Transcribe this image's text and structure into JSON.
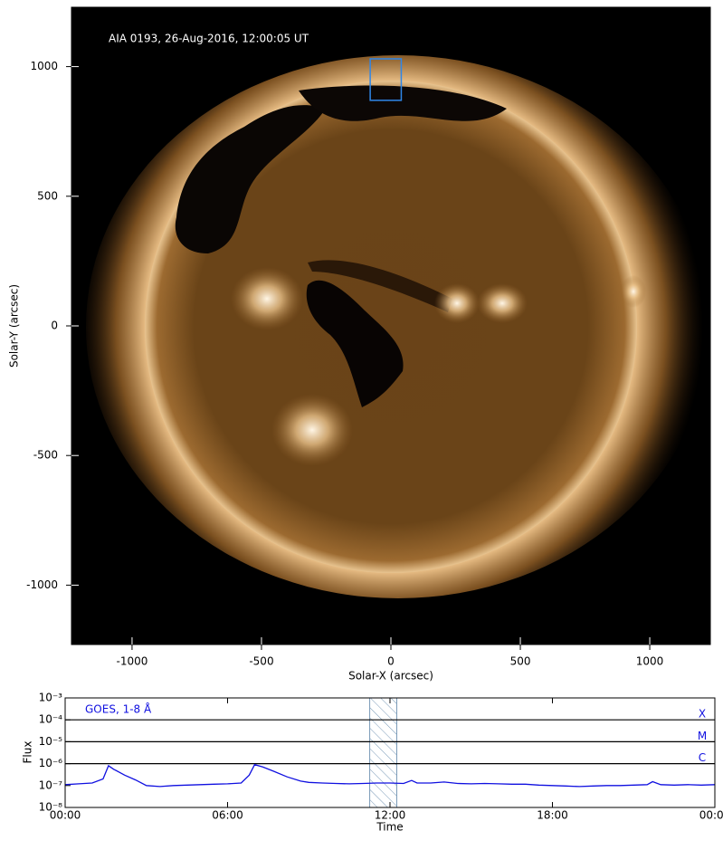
{
  "chart_data": [
    {
      "type": "image",
      "title": "AIA 0193, 26-Aug-2016, 12:00:05 UT",
      "x_label": "Solar-X (arcsec)",
      "y_label": "Solar-Y (arcsec)",
      "xlim": [
        -1234,
        1234
      ],
      "ylim": [
        -1229,
        1229
      ],
      "xticks": [
        -1000,
        -500,
        0,
        500,
        1000
      ],
      "yticks": [
        -1000,
        -500,
        0,
        500,
        1000
      ],
      "box": {
        "x": [
          -80,
          40
        ],
        "y": [
          870,
          1030
        ]
      },
      "box_color": "#2f86e8"
    },
    {
      "type": "line",
      "x_label": "Time",
      "y_label": "Flux",
      "yscale": "log",
      "xlim": [
        0,
        24
      ],
      "ylim": [
        1e-08,
        0.001
      ],
      "xticks": [
        {
          "value": 0,
          "label": "00:00"
        },
        {
          "value": 6,
          "label": "06:00"
        },
        {
          "value": 12,
          "label": "12:00"
        },
        {
          "value": 18,
          "label": "18:00"
        },
        {
          "value": 24,
          "label": "00:00"
        }
      ],
      "yticks": [
        {
          "value": 1e-08,
          "label": "10⁻⁸"
        },
        {
          "value": 1e-07,
          "label": "10⁻⁷"
        },
        {
          "value": 1e-06,
          "label": "10⁻⁶"
        },
        {
          "value": 1e-05,
          "label": "10⁻⁵"
        },
        {
          "value": 0.0001,
          "label": "10⁻⁴"
        },
        {
          "value": 0.001,
          "label": "10⁻³"
        }
      ],
      "thresholds": [
        {
          "value": 0.0001,
          "label": "X"
        },
        {
          "value": 1e-05,
          "label": "M"
        },
        {
          "value": 1e-06,
          "label": "C"
        }
      ],
      "highlight": [
        11.25,
        12.25
      ],
      "x": [
        0,
        0.5,
        1,
        1.4,
        1.6,
        1.8,
        2.2,
        2.6,
        3,
        3.5,
        4,
        4.5,
        5,
        5.5,
        6,
        6.5,
        6.8,
        7,
        7.3,
        7.7,
        8.2,
        8.7,
        9,
        9.5,
        10,
        10.5,
        11,
        11.5,
        12,
        12.5,
        12.8,
        13,
        13.5,
        14,
        14.5,
        15,
        15.5,
        16,
        16.5,
        17,
        17.5,
        18,
        18.5,
        19,
        19.5,
        20,
        20.5,
        21,
        21.5,
        21.7,
        22,
        22.5,
        23,
        23.5,
        24
      ],
      "series": [
        {
          "name": "GOES, 1-8 Å",
          "color": "#1010e0",
          "values": [
            1.1e-07,
            1.2e-07,
            1.3e-07,
            2e-07,
            8e-07,
            5.5e-07,
            3e-07,
            1.8e-07,
            1e-07,
            9e-08,
            1e-07,
            1.05e-07,
            1.1e-07,
            1.15e-07,
            1.2e-07,
            1.3e-07,
            3e-07,
            9e-07,
            7e-07,
            4.5e-07,
            2.5e-07,
            1.6e-07,
            1.4e-07,
            1.3e-07,
            1.25e-07,
            1.2e-07,
            1.25e-07,
            1.3e-07,
            1.3e-07,
            1.25e-07,
            1.7e-07,
            1.3e-07,
            1.3e-07,
            1.45e-07,
            1.25e-07,
            1.2e-07,
            1.25e-07,
            1.2e-07,
            1.15e-07,
            1.15e-07,
            1.05e-07,
            1e-07,
            9.5e-08,
            9e-08,
            9.5e-08,
            1e-07,
            1e-07,
            1.05e-07,
            1.1e-07,
            1.5e-07,
            1.1e-07,
            1.05e-07,
            1.1e-07,
            1.05e-07,
            1.1e-07
          ]
        }
      ]
    }
  ]
}
